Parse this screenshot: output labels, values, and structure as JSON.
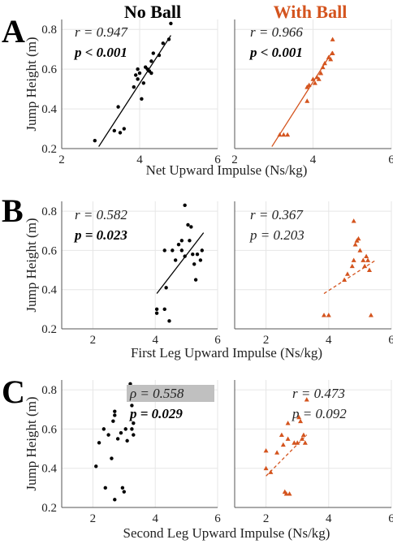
{
  "column_titles": {
    "no_ball": "No Ball",
    "with_ball": "With Ball"
  },
  "colors": {
    "no_ball": "#000000",
    "with_ball": "#d4541e",
    "highlight_box": "#c0c0c0"
  },
  "chart_data": [
    {
      "type": "scatter",
      "panel": "A",
      "condition": "No Ball",
      "xlabel": "Net Upward Impulse (Ns/kg)",
      "ylabel": "Jump Height (m)",
      "xlim": [
        2,
        6
      ],
      "ylim": [
        0.2,
        0.85
      ],
      "xticks": [
        2,
        4,
        6
      ],
      "yticks": [
        0.2,
        0.4,
        0.6,
        0.8
      ],
      "marker": "circle",
      "color": "#000000",
      "points": [
        [
          2.85,
          0.24
        ],
        [
          3.35,
          0.29
        ],
        [
          3.45,
          0.41
        ],
        [
          3.5,
          0.28
        ],
        [
          3.6,
          0.3
        ],
        [
          3.85,
          0.51
        ],
        [
          3.9,
          0.57
        ],
        [
          3.95,
          0.6
        ],
        [
          3.95,
          0.55
        ],
        [
          4.0,
          0.58
        ],
        [
          4.05,
          0.45
        ],
        [
          4.1,
          0.53
        ],
        [
          4.15,
          0.61
        ],
        [
          4.2,
          0.6
        ],
        [
          4.25,
          0.59
        ],
        [
          4.3,
          0.58
        ],
        [
          4.3,
          0.64
        ],
        [
          4.35,
          0.68
        ],
        [
          4.5,
          0.67
        ],
        [
          4.6,
          0.73
        ],
        [
          4.75,
          0.75
        ],
        [
          4.8,
          0.83
        ]
      ],
      "fit": {
        "x": [
          2.95,
          4.8
        ],
        "y": [
          0.21,
          0.77
        ],
        "style": "solid"
      },
      "stats": {
        "r": "r = 0.947",
        "p": "p < 0.001",
        "p_bold": true,
        "highlight": false
      }
    },
    {
      "type": "scatter",
      "panel": "A",
      "condition": "With Ball",
      "xlabel": "Net Upward Impulse (Ns/kg)",
      "ylabel": "",
      "xlim": [
        2,
        6
      ],
      "ylim": [
        0.2,
        0.85
      ],
      "xticks": [
        2,
        4,
        6
      ],
      "yticks": [
        0.2,
        0.4,
        0.6,
        0.8
      ],
      "marker": "triangle",
      "color": "#d4541e",
      "points": [
        [
          3.15,
          0.27
        ],
        [
          3.25,
          0.27
        ],
        [
          3.35,
          0.27
        ],
        [
          3.85,
          0.44
        ],
        [
          3.85,
          0.51
        ],
        [
          3.9,
          0.52
        ],
        [
          4.0,
          0.55
        ],
        [
          4.05,
          0.53
        ],
        [
          4.1,
          0.56
        ],
        [
          4.15,
          0.55
        ],
        [
          4.2,
          0.58
        ],
        [
          4.25,
          0.61
        ],
        [
          4.3,
          0.63
        ],
        [
          4.4,
          0.66
        ],
        [
          4.45,
          0.65
        ],
        [
          4.5,
          0.68
        ],
        [
          4.5,
          0.75
        ]
      ],
      "fit": {
        "x": [
          2.95,
          4.5
        ],
        "y": [
          0.21,
          0.69
        ],
        "style": "solid"
      },
      "stats": {
        "r": "r = 0.966",
        "p": "p < 0.001",
        "p_bold": true,
        "highlight": false
      }
    },
    {
      "type": "scatter",
      "panel": "B",
      "condition": "No Ball",
      "xlabel": "First Leg Upward Impulse (Ns/kg)",
      "ylabel": "Jump Height (m)",
      "xlim": [
        1,
        6
      ],
      "ylim": [
        0.2,
        0.85
      ],
      "xticks": [
        2,
        4,
        6
      ],
      "yticks": [
        0.2,
        0.4,
        0.6,
        0.8
      ],
      "marker": "circle",
      "color": "#000000",
      "points": [
        [
          4.05,
          0.3
        ],
        [
          4.05,
          0.28
        ],
        [
          4.3,
          0.3
        ],
        [
          4.35,
          0.41
        ],
        [
          4.45,
          0.24
        ],
        [
          4.3,
          0.6
        ],
        [
          4.55,
          0.6
        ],
        [
          4.65,
          0.55
        ],
        [
          4.75,
          0.63
        ],
        [
          4.85,
          0.6
        ],
        [
          4.85,
          0.65
        ],
        [
          4.95,
          0.57
        ],
        [
          4.95,
          0.83
        ],
        [
          5.05,
          0.73
        ],
        [
          5.1,
          0.65
        ],
        [
          5.15,
          0.72
        ],
        [
          5.2,
          0.58
        ],
        [
          5.25,
          0.53
        ],
        [
          5.3,
          0.45
        ],
        [
          5.35,
          0.58
        ],
        [
          5.45,
          0.55
        ],
        [
          5.5,
          0.6
        ]
      ],
      "fit": {
        "x": [
          4.05,
          5.55
        ],
        "y": [
          0.38,
          0.69
        ],
        "style": "solid"
      },
      "stats": {
        "r": "r = 0.582",
        "p": "p = 0.023",
        "p_bold": true,
        "highlight": false
      }
    },
    {
      "type": "scatter",
      "panel": "B",
      "condition": "With Ball",
      "xlabel": "First Leg Upward Impulse (Ns/kg)",
      "ylabel": "",
      "xlim": [
        1,
        6
      ],
      "ylim": [
        0.2,
        0.85
      ],
      "xticks": [
        2,
        4,
        6
      ],
      "yticks": [
        0.2,
        0.4,
        0.6,
        0.8
      ],
      "marker": "triangle",
      "color": "#d4541e",
      "points": [
        [
          3.85,
          0.27
        ],
        [
          4.0,
          0.27
        ],
        [
          4.5,
          0.45
        ],
        [
          4.6,
          0.48
        ],
        [
          4.75,
          0.52
        ],
        [
          4.8,
          0.75
        ],
        [
          4.8,
          0.55
        ],
        [
          4.85,
          0.63
        ],
        [
          4.9,
          0.65
        ],
        [
          4.95,
          0.66
        ],
        [
          5.0,
          0.6
        ],
        [
          5.1,
          0.55
        ],
        [
          5.15,
          0.52
        ],
        [
          5.2,
          0.57
        ],
        [
          5.25,
          0.55
        ],
        [
          5.3,
          0.5
        ],
        [
          5.35,
          0.27
        ]
      ],
      "fit": {
        "x": [
          3.85,
          5.5
        ],
        "y": [
          0.38,
          0.55
        ],
        "style": "dashed"
      },
      "stats": {
        "r": "r = 0.367",
        "p": "p = 0.203",
        "p_bold": false,
        "highlight": false
      }
    },
    {
      "type": "scatter",
      "panel": "C",
      "condition": "No Ball",
      "xlabel": "Second Leg Upward Impulse (Ns/kg)",
      "ylabel": "Jump Height (m)",
      "xlim": [
        1,
        6
      ],
      "ylim": [
        0.2,
        0.85
      ],
      "xticks": [
        2,
        4,
        6
      ],
      "yticks": [
        0.2,
        0.4,
        0.6,
        0.8
      ],
      "marker": "circle",
      "color": "#000000",
      "points": [
        [
          2.1,
          0.41
        ],
        [
          2.2,
          0.53
        ],
        [
          2.35,
          0.6
        ],
        [
          2.4,
          0.3
        ],
        [
          2.5,
          0.57
        ],
        [
          2.6,
          0.45
        ],
        [
          2.65,
          0.64
        ],
        [
          2.7,
          0.67
        ],
        [
          2.7,
          0.69
        ],
        [
          2.7,
          0.24
        ],
        [
          2.8,
          0.55
        ],
        [
          2.9,
          0.58
        ],
        [
          2.95,
          0.3
        ],
        [
          3.0,
          0.28
        ],
        [
          3.05,
          0.6
        ],
        [
          3.1,
          0.54
        ],
        [
          3.2,
          0.83
        ],
        [
          3.25,
          0.72
        ],
        [
          3.25,
          0.6
        ],
        [
          3.3,
          0.63
        ],
        [
          3.3,
          0.57
        ]
      ],
      "fit": null,
      "stats": {
        "r": "ρ = 0.558",
        "p": "p = 0.029",
        "p_bold": true,
        "highlight": true
      }
    },
    {
      "type": "scatter",
      "panel": "C",
      "condition": "With Ball",
      "xlabel": "Second Leg Upward Impulse (Ns/kg)",
      "ylabel": "",
      "xlim": [
        1,
        6
      ],
      "ylim": [
        0.2,
        0.85
      ],
      "xticks": [
        2,
        4,
        6
      ],
      "yticks": [
        0.2,
        0.4,
        0.6,
        0.8
      ],
      "marker": "triangle",
      "color": "#d4541e",
      "points": [
        [
          2.0,
          0.4
        ],
        [
          2.0,
          0.49
        ],
        [
          2.15,
          0.38
        ],
        [
          2.35,
          0.48
        ],
        [
          2.5,
          0.57
        ],
        [
          2.55,
          0.52
        ],
        [
          2.6,
          0.28
        ],
        [
          2.65,
          0.27
        ],
        [
          2.7,
          0.55
        ],
        [
          2.7,
          0.63
        ],
        [
          2.75,
          0.27
        ],
        [
          2.9,
          0.53
        ],
        [
          3.0,
          0.53
        ],
        [
          3.05,
          0.66
        ],
        [
          3.1,
          0.64
        ],
        [
          3.15,
          0.55
        ],
        [
          3.2,
          0.57
        ],
        [
          3.25,
          0.53
        ],
        [
          3.3,
          0.75
        ]
      ],
      "fit": {
        "x": [
          2.0,
          3.3
        ],
        "y": [
          0.36,
          0.57
        ],
        "style": "dashed"
      },
      "stats": {
        "r": "r = 0.473",
        "p": "p = 0.092",
        "p_bold": false,
        "highlight": false
      }
    }
  ],
  "panel_letters": [
    "A",
    "B",
    "C"
  ]
}
